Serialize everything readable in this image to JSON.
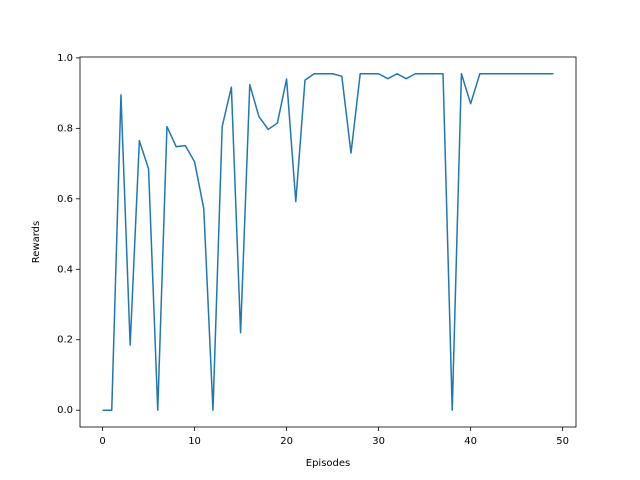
{
  "chart_data": {
    "type": "line",
    "x_label": "Episodes",
    "y_label": "Rewards",
    "x": [
      0,
      1,
      2,
      3,
      4,
      5,
      6,
      7,
      8,
      9,
      10,
      11,
      12,
      13,
      14,
      15,
      16,
      17,
      18,
      19,
      20,
      21,
      22,
      23,
      24,
      25,
      26,
      27,
      28,
      29,
      30,
      31,
      32,
      33,
      34,
      35,
      36,
      37,
      38,
      39,
      40,
      41,
      42,
      43,
      44,
      45,
      46,
      47,
      48,
      49
    ],
    "series": [
      {
        "name": "Rewards",
        "color": "#1f77b4",
        "values": [
          0.0,
          0.0,
          0.895,
          0.185,
          0.765,
          0.685,
          0.0,
          0.805,
          0.748,
          0.751,
          0.705,
          0.572,
          0.0,
          0.805,
          0.917,
          0.22,
          0.924,
          0.833,
          0.797,
          0.815,
          0.94,
          0.592,
          0.937,
          0.955,
          0.955,
          0.955,
          0.948,
          0.73,
          0.955,
          0.955,
          0.955,
          0.941,
          0.955,
          0.941,
          0.955,
          0.955,
          0.955,
          0.955,
          0.0,
          0.955,
          0.87,
          0.955,
          0.955,
          0.955,
          0.955,
          0.955,
          0.955,
          0.955,
          0.955,
          0.955
        ]
      }
    ],
    "xlim": [
      -2.45,
      51.45
    ],
    "ylim": [
      -0.0477,
      1.0025
    ],
    "xticks": [
      0,
      10,
      20,
      30,
      40,
      50
    ],
    "yticks": [
      {
        "value": 0,
        "label": "0.0"
      },
      0.2,
      0.4,
      0.6,
      0.8,
      {
        "value": 1,
        "label": "1.0"
      }
    ]
  }
}
